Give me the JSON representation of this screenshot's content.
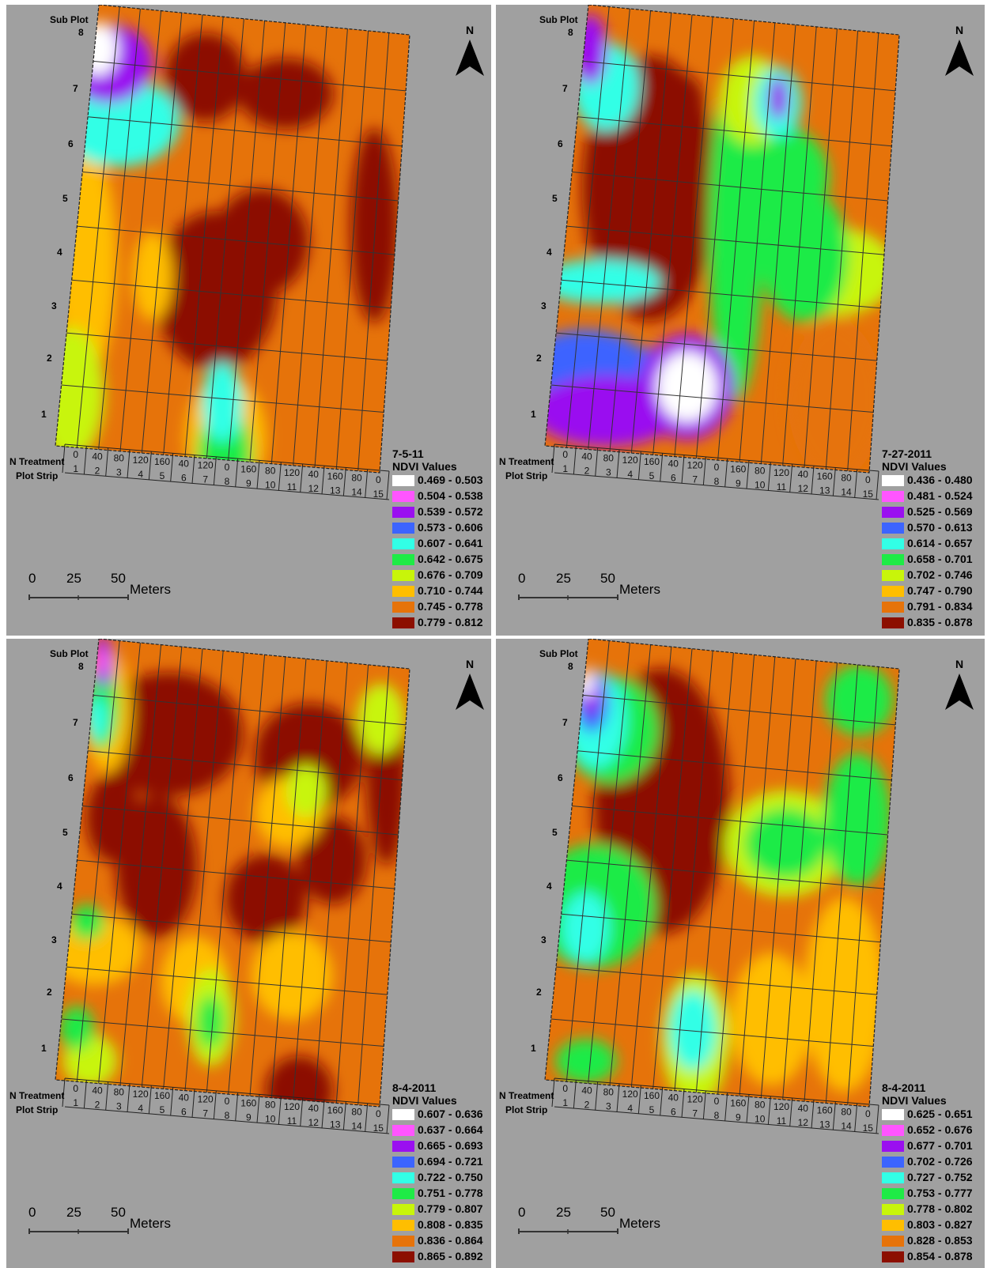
{
  "labels": {
    "sub_plot": "Sub Plot",
    "n_treatment": "N Treatment",
    "plot_strip": "Plot Strip",
    "north": "N",
    "meters": "Meters",
    "scale_ticks": [
      "0",
      "25",
      "50"
    ],
    "legend_title": "NDVI Values",
    "subplots": [
      "8",
      "7",
      "6",
      "5",
      "4",
      "3",
      "2",
      "1"
    ],
    "n_treatments": [
      "0",
      "40",
      "80",
      "120",
      "160",
      "40",
      "120",
      "0",
      "160",
      "80",
      "120",
      "40",
      "160",
      "80",
      "0"
    ],
    "strips": [
      "1",
      "2",
      "3",
      "4",
      "5",
      "6",
      "7",
      "8",
      "9",
      "10",
      "11",
      "12",
      "13",
      "14",
      "15"
    ]
  },
  "class_colors": [
    "#ffffff",
    "#ff55ff",
    "#9a10f0",
    "#3c64ff",
    "#32ffe6",
    "#1eeb46",
    "#c8f50a",
    "#ffbe00",
    "#e6730a",
    "#8c0f00"
  ],
  "panels": [
    {
      "id": "p0",
      "date": "7-5-11",
      "ranges": [
        "0.469 - 0.503",
        "0.504 - 0.538",
        "0.539 - 0.572",
        "0.573 - 0.606",
        "0.607 - 0.641",
        "0.642 - 0.675",
        "0.676 - 0.709",
        "0.710 - 0.744",
        "0.745 - 0.778",
        "0.779 - 0.812"
      ],
      "blobs": [
        {
          "u": 0.45,
          "v": 0.62,
          "a": 0.18,
          "b": 0.18,
          "c": 9
        },
        {
          "u": 0.58,
          "v": 0.5,
          "a": 0.14,
          "b": 0.12,
          "c": 9
        },
        {
          "u": 0.36,
          "v": 0.14,
          "a": 0.12,
          "b": 0.1,
          "c": 9
        },
        {
          "u": 0.62,
          "v": 0.16,
          "a": 0.14,
          "b": 0.08,
          "c": 9
        },
        {
          "u": 0.93,
          "v": 0.44,
          "a": 0.07,
          "b": 0.22,
          "c": 9
        },
        {
          "u": 0.04,
          "v": 0.58,
          "a": 0.09,
          "b": 0.26,
          "c": 7
        },
        {
          "u": 0.03,
          "v": 0.88,
          "a": 0.1,
          "b": 0.15,
          "c": 6
        },
        {
          "u": 0.52,
          "v": 0.95,
          "a": 0.12,
          "b": 0.14,
          "c": 7
        },
        {
          "u": 0.52,
          "v": 0.99,
          "a": 0.08,
          "b": 0.11,
          "c": 5
        },
        {
          "u": 0.5,
          "v": 0.87,
          "a": 0.06,
          "b": 0.09,
          "c": 4
        },
        {
          "u": 0.25,
          "v": 0.6,
          "a": 0.06,
          "b": 0.1,
          "c": 7
        },
        {
          "u": 0.1,
          "v": 0.26,
          "a": 0.18,
          "b": 0.1,
          "c": 4
        },
        {
          "u": 0.05,
          "v": 0.13,
          "a": 0.13,
          "b": 0.09,
          "c": 2
        },
        {
          "u": 0.01,
          "v": 0.1,
          "a": 0.06,
          "b": 0.06,
          "c": 0
        }
      ]
    },
    {
      "id": "p1",
      "date": "7-27-2011",
      "ranges": [
        "0.436 - 0.480",
        "0.481 - 0.524",
        "0.525 - 0.569",
        "0.570 - 0.613",
        "0.614 - 0.657",
        "0.658 - 0.701",
        "0.702 - 0.746",
        "0.747 - 0.790",
        "0.791 - 0.834",
        "0.835 - 0.878"
      ],
      "blobs": [
        {
          "u": 0.25,
          "v": 0.4,
          "a": 0.2,
          "b": 0.3,
          "c": 9
        },
        {
          "u": 0.3,
          "v": 0.2,
          "a": 0.09,
          "b": 0.07,
          "c": 9
        },
        {
          "u": 0.88,
          "v": 0.84,
          "a": 0.14,
          "b": 0.18,
          "c": 8
        },
        {
          "u": 0.85,
          "v": 0.55,
          "a": 0.18,
          "b": 0.1,
          "c": 6
        },
        {
          "u": 0.53,
          "v": 0.48,
          "a": 0.08,
          "b": 0.38,
          "c": 5
        },
        {
          "u": 0.75,
          "v": 0.52,
          "a": 0.13,
          "b": 0.15,
          "c": 5
        },
        {
          "u": 0.65,
          "v": 0.35,
          "a": 0.15,
          "b": 0.12,
          "c": 5
        },
        {
          "u": 0.55,
          "v": 0.18,
          "a": 0.1,
          "b": 0.1,
          "c": 6
        },
        {
          "u": 0.12,
          "v": 0.62,
          "a": 0.18,
          "b": 0.05,
          "c": 4
        },
        {
          "u": 0.63,
          "v": 0.18,
          "a": 0.07,
          "b": 0.08,
          "c": 4
        },
        {
          "u": 0.63,
          "v": 0.17,
          "a": 0.03,
          "b": 0.05,
          "c": 2
        },
        {
          "u": 0.1,
          "v": 0.81,
          "a": 0.18,
          "b": 0.08,
          "c": 3
        },
        {
          "u": 0.28,
          "v": 0.84,
          "a": 0.22,
          "b": 0.08,
          "c": 3
        },
        {
          "u": 0.18,
          "v": 0.91,
          "a": 0.22,
          "b": 0.08,
          "c": 2
        },
        {
          "u": 0.42,
          "v": 0.84,
          "a": 0.14,
          "b": 0.12,
          "c": 2
        },
        {
          "u": 0.42,
          "v": 0.84,
          "a": 0.09,
          "b": 0.08,
          "c": 0
        },
        {
          "u": 0.08,
          "v": 0.18,
          "a": 0.1,
          "b": 0.1,
          "c": 4
        },
        {
          "u": 0.02,
          "v": 0.1,
          "a": 0.05,
          "b": 0.08,
          "c": 2
        }
      ]
    },
    {
      "id": "p2",
      "date": "8-4-2011",
      "ranges": [
        "0.607 - 0.636",
        "0.637 - 0.664",
        "0.665 - 0.693",
        "0.694 - 0.721",
        "0.722 - 0.750",
        "0.751 - 0.778",
        "0.779 - 0.807",
        "0.808 - 0.835",
        "0.836 - 0.864",
        "0.865 - 0.892"
      ],
      "blobs": [
        {
          "u": 0.25,
          "v": 0.2,
          "a": 0.22,
          "b": 0.14,
          "c": 9
        },
        {
          "u": 0.25,
          "v": 0.5,
          "a": 0.12,
          "b": 0.16,
          "c": 9
        },
        {
          "u": 0.7,
          "v": 0.22,
          "a": 0.16,
          "b": 0.12,
          "c": 9
        },
        {
          "u": 0.8,
          "v": 0.45,
          "a": 0.1,
          "b": 0.1,
          "c": 9
        },
        {
          "u": 0.6,
          "v": 0.55,
          "a": 0.12,
          "b": 0.1,
          "c": 9
        },
        {
          "u": 0.1,
          "v": 0.4,
          "a": 0.08,
          "b": 0.1,
          "c": 9
        },
        {
          "u": 0.95,
          "v": 0.25,
          "a": 0.06,
          "b": 0.2,
          "c": 9
        },
        {
          "u": 0.75,
          "v": 0.98,
          "a": 0.1,
          "b": 0.08,
          "c": 9
        },
        {
          "u": 0.08,
          "v": 0.7,
          "a": 0.14,
          "b": 0.08,
          "c": 7
        },
        {
          "u": 0.4,
          "v": 0.75,
          "a": 0.1,
          "b": 0.1,
          "c": 7
        },
        {
          "u": 0.7,
          "v": 0.72,
          "a": 0.12,
          "b": 0.1,
          "c": 7
        },
        {
          "u": 0.65,
          "v": 0.35,
          "a": 0.1,
          "b": 0.08,
          "c": 7
        },
        {
          "u": 0.7,
          "v": 0.3,
          "a": 0.06,
          "b": 0.06,
          "c": 6
        },
        {
          "u": 0.92,
          "v": 0.12,
          "a": 0.07,
          "b": 0.08,
          "c": 6
        },
        {
          "u": 0.1,
          "v": 0.95,
          "a": 0.08,
          "b": 0.06,
          "c": 6
        },
        {
          "u": 0.05,
          "v": 0.88,
          "a": 0.05,
          "b": 0.05,
          "c": 5
        },
        {
          "u": 0.05,
          "v": 0.64,
          "a": 0.05,
          "b": 0.04,
          "c": 5
        },
        {
          "u": 0.46,
          "v": 0.83,
          "a": 0.07,
          "b": 0.11,
          "c": 6
        },
        {
          "u": 0.46,
          "v": 0.84,
          "a": 0.04,
          "b": 0.06,
          "c": 5
        },
        {
          "u": 0.05,
          "v": 0.16,
          "a": 0.07,
          "b": 0.14,
          "c": 7
        },
        {
          "u": 0.03,
          "v": 0.15,
          "a": 0.05,
          "b": 0.1,
          "c": 5
        },
        {
          "u": 0.02,
          "v": 0.18,
          "a": 0.03,
          "b": 0.05,
          "c": 4
        },
        {
          "u": 0.02,
          "v": 0.05,
          "a": 0.03,
          "b": 0.06,
          "c": 2
        },
        {
          "u": 0.01,
          "v": 0.05,
          "a": 0.02,
          "b": 0.03,
          "c": 1
        }
      ]
    },
    {
      "id": "p3",
      "date": "8-4-2011",
      "ranges": [
        "0.625 - 0.651",
        "0.652 - 0.676",
        "0.677 - 0.701",
        "0.702 - 0.726",
        "0.727 - 0.752",
        "0.753 - 0.777",
        "0.778 - 0.802",
        "0.803 - 0.827",
        "0.828 - 0.853",
        "0.854 - 0.878"
      ],
      "blobs": [
        {
          "u": 0.28,
          "v": 0.35,
          "a": 0.2,
          "b": 0.3,
          "c": 9
        },
        {
          "u": 0.25,
          "v": 0.35,
          "a": 0.1,
          "b": 0.18,
          "c": 9
        },
        {
          "u": 0.9,
          "v": 0.75,
          "a": 0.12,
          "b": 0.22,
          "c": 7
        },
        {
          "u": 0.68,
          "v": 0.82,
          "a": 0.12,
          "b": 0.15,
          "c": 7
        },
        {
          "u": 0.68,
          "v": 0.42,
          "a": 0.18,
          "b": 0.12,
          "c": 6
        },
        {
          "u": 0.68,
          "v": 0.42,
          "a": 0.12,
          "b": 0.08,
          "c": 5
        },
        {
          "u": 0.9,
          "v": 0.35,
          "a": 0.1,
          "b": 0.15,
          "c": 5
        },
        {
          "u": 0.88,
          "v": 0.08,
          "a": 0.1,
          "b": 0.08,
          "c": 5
        },
        {
          "u": 0.45,
          "v": 0.88,
          "a": 0.1,
          "b": 0.15,
          "c": 6
        },
        {
          "u": 0.44,
          "v": 0.86,
          "a": 0.07,
          "b": 0.09,
          "c": 4
        },
        {
          "u": 0.1,
          "v": 0.6,
          "a": 0.18,
          "b": 0.14,
          "c": 5
        },
        {
          "u": 0.08,
          "v": 0.65,
          "a": 0.07,
          "b": 0.08,
          "c": 4
        },
        {
          "u": 0.12,
          "v": 0.95,
          "a": 0.09,
          "b": 0.05,
          "c": 5
        },
        {
          "u": 0.1,
          "v": 0.2,
          "a": 0.14,
          "b": 0.12,
          "c": 5
        },
        {
          "u": 0.05,
          "v": 0.18,
          "a": 0.09,
          "b": 0.11,
          "c": 4
        },
        {
          "u": 0.03,
          "v": 0.14,
          "a": 0.05,
          "b": 0.07,
          "c": 3
        },
        {
          "u": 0.02,
          "v": 0.12,
          "a": 0.035,
          "b": 0.05,
          "c": 2
        },
        {
          "u": 0.01,
          "v": 0.1,
          "a": 0.02,
          "b": 0.035,
          "c": 0
        }
      ]
    }
  ]
}
